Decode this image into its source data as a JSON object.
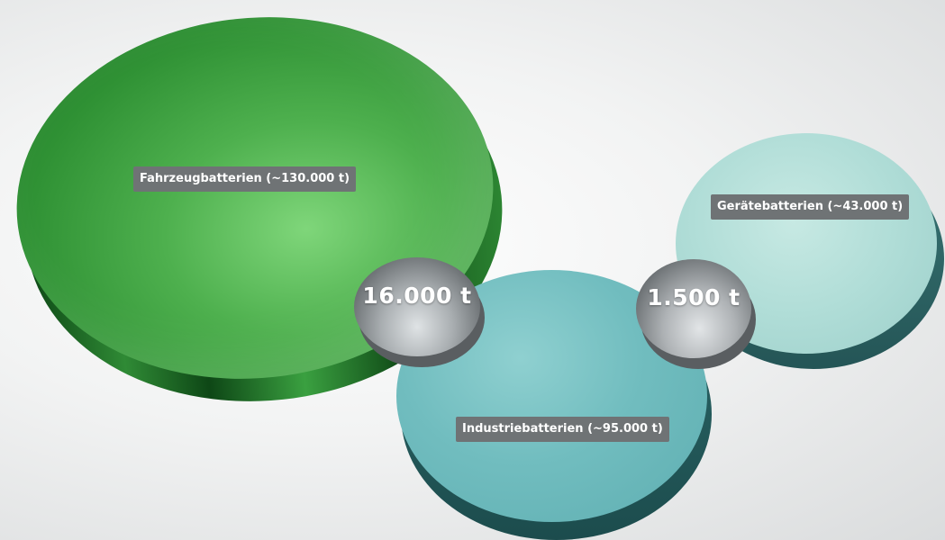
{
  "circles": {
    "vehicle": {
      "label": "Fahrzeugbatterien (~130.000 t)",
      "color": "#3aa040"
    },
    "industry": {
      "label": "Industriebatterien (~95.000 t)",
      "color": "#71bdbf"
    },
    "devices": {
      "label": "Gerätebatterien (~43.000 t)",
      "color": "#b0ddd7"
    }
  },
  "overlaps": {
    "vehicle_industry": {
      "value": "16.000 t"
    },
    "industry_devices": {
      "value": "1.500 t"
    }
  }
}
